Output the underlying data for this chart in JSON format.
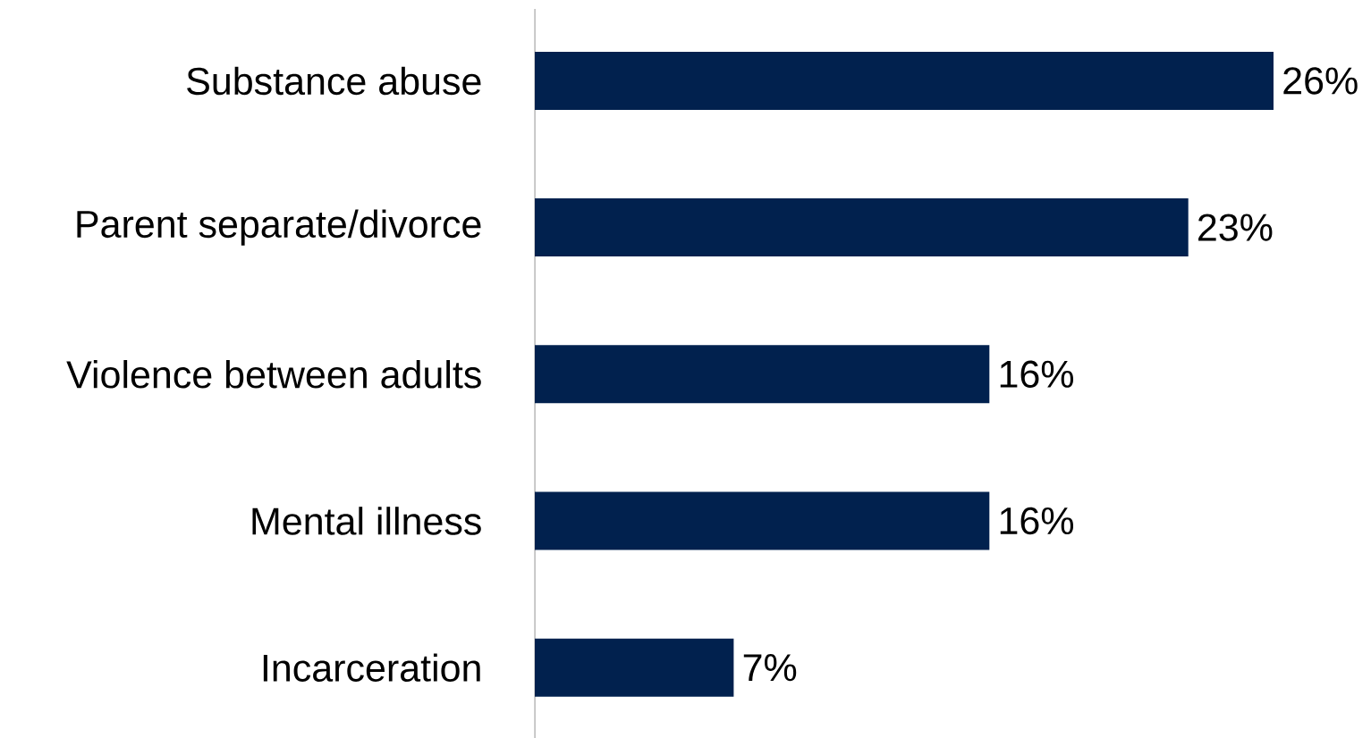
{
  "chart_data": {
    "type": "bar",
    "orientation": "horizontal",
    "categories": [
      "Substance abuse",
      "Parent separate/divorce",
      "Violence between adults",
      "Mental illness",
      "Incarceration"
    ],
    "values": [
      26,
      23,
      16,
      16,
      7
    ],
    "value_labels": [
      "26%",
      "23%",
      "16%",
      "16%",
      "7%"
    ],
    "color": "#01214e"
  }
}
